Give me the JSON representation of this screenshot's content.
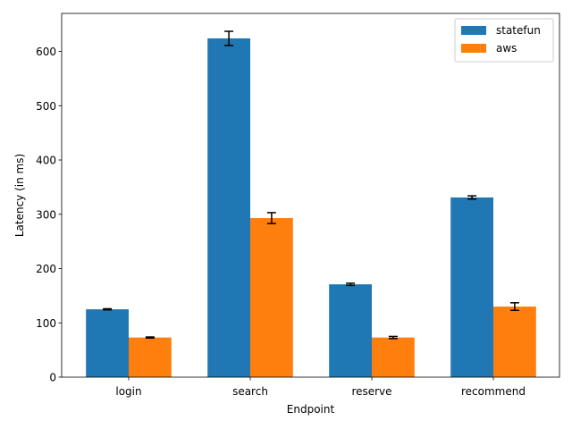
{
  "chart_data": {
    "type": "bar",
    "title": "",
    "xlabel": "Endpoint",
    "ylabel": "Latency (in ms)",
    "categories": [
      "login",
      "search",
      "reserve",
      "recommend"
    ],
    "series": [
      {
        "name": "statefun",
        "color": "#1f77b4",
        "values": [
          125,
          624,
          171,
          331
        ],
        "errors": [
          1,
          13,
          2,
          3
        ]
      },
      {
        "name": "aws",
        "color": "#ff7f0e",
        "values": [
          73,
          293,
          73,
          130
        ],
        "errors": [
          1,
          10,
          2,
          7
        ]
      }
    ],
    "ylim": [
      0,
      670
    ],
    "yticks": [
      0,
      100,
      200,
      300,
      400,
      500,
      600
    ],
    "grid": false,
    "legend_position": "top-right"
  }
}
